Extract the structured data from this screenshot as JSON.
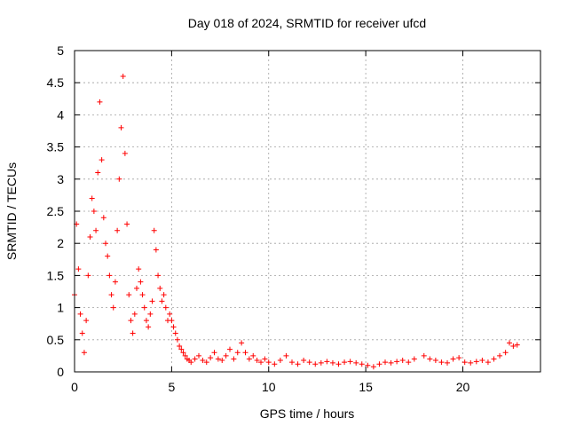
{
  "chart_data": {
    "type": "scatter",
    "title": "Day 018 of 2024, SRMTID for receiver ufcd",
    "xlabel": "GPS time / hours",
    "ylabel": "SRMTID / TECUs",
    "xlim": [
      0,
      24
    ],
    "ylim": [
      0,
      5
    ],
    "x_ticks": [
      0,
      5,
      10,
      15,
      20
    ],
    "y_ticks": [
      0,
      0.5,
      1,
      1.5,
      2,
      2.5,
      3,
      3.5,
      4,
      4.5,
      5
    ],
    "x_tick_labels": [
      "0",
      "5",
      "10",
      "15",
      "20"
    ],
    "y_tick_labels": [
      "0",
      "0.5",
      "1",
      "1.5",
      "2",
      "2.5",
      "3",
      "3.5",
      "4",
      "4.5",
      "5"
    ],
    "grid": true,
    "marker": "+",
    "color": "#ff0000",
    "series": [
      {
        "name": "SRMTID",
        "x": [
          0.0,
          0.1,
          0.2,
          0.3,
          0.4,
          0.5,
          0.6,
          0.7,
          0.8,
          0.9,
          1.0,
          1.1,
          1.2,
          1.3,
          1.4,
          1.5,
          1.6,
          1.7,
          1.8,
          1.9,
          2.0,
          2.1,
          2.2,
          2.3,
          2.4,
          2.5,
          2.6,
          2.7,
          2.8,
          2.9,
          3.0,
          3.1,
          3.2,
          3.3,
          3.4,
          3.5,
          3.6,
          3.7,
          3.8,
          3.9,
          4.0,
          4.1,
          4.2,
          4.3,
          4.4,
          4.5,
          4.6,
          4.7,
          4.8,
          4.9,
          5.0,
          5.1,
          5.2,
          5.3,
          5.4,
          5.5,
          5.6,
          5.7,
          5.8,
          5.9,
          6.0,
          6.2,
          6.4,
          6.6,
          6.8,
          7.0,
          7.2,
          7.4,
          7.6,
          7.8,
          8.0,
          8.2,
          8.4,
          8.6,
          8.8,
          9.0,
          9.2,
          9.4,
          9.6,
          9.8,
          10.0,
          10.3,
          10.6,
          10.9,
          11.2,
          11.5,
          11.8,
          12.1,
          12.4,
          12.7,
          13.0,
          13.3,
          13.6,
          13.9,
          14.2,
          14.5,
          14.8,
          15.1,
          15.4,
          15.7,
          16.0,
          16.3,
          16.6,
          16.9,
          17.2,
          17.5,
          18.0,
          18.3,
          18.6,
          18.9,
          19.2,
          19.5,
          19.8,
          20.1,
          20.4,
          20.7,
          21.0,
          21.3,
          21.6,
          21.9,
          22.2,
          22.4,
          22.6,
          22.8
        ],
        "y": [
          1.2,
          2.3,
          1.6,
          0.9,
          0.6,
          0.3,
          0.8,
          1.5,
          2.1,
          2.7,
          2.5,
          2.2,
          3.1,
          4.2,
          3.3,
          2.4,
          2.0,
          1.8,
          1.5,
          1.2,
          1.0,
          1.4,
          2.2,
          3.0,
          3.8,
          4.6,
          3.4,
          2.3,
          1.2,
          0.8,
          0.6,
          0.9,
          1.3,
          1.6,
          1.4,
          1.2,
          1.0,
          0.8,
          0.7,
          0.9,
          1.1,
          2.2,
          1.9,
          1.5,
          1.3,
          1.1,
          1.2,
          1.0,
          0.8,
          0.9,
          0.8,
          0.7,
          0.6,
          0.5,
          0.4,
          0.35,
          0.3,
          0.25,
          0.2,
          0.18,
          0.15,
          0.2,
          0.25,
          0.18,
          0.15,
          0.22,
          0.3,
          0.2,
          0.18,
          0.25,
          0.35,
          0.2,
          0.3,
          0.45,
          0.3,
          0.2,
          0.25,
          0.18,
          0.15,
          0.2,
          0.15,
          0.12,
          0.18,
          0.25,
          0.15,
          0.12,
          0.18,
          0.15,
          0.12,
          0.14,
          0.16,
          0.14,
          0.12,
          0.15,
          0.16,
          0.14,
          0.12,
          0.1,
          0.08,
          0.12,
          0.15,
          0.14,
          0.16,
          0.18,
          0.15,
          0.2,
          0.25,
          0.2,
          0.18,
          0.15,
          0.14,
          0.2,
          0.22,
          0.15,
          0.14,
          0.16,
          0.18,
          0.15,
          0.2,
          0.25,
          0.3,
          0.45,
          0.4,
          0.42
        ]
      }
    ]
  }
}
